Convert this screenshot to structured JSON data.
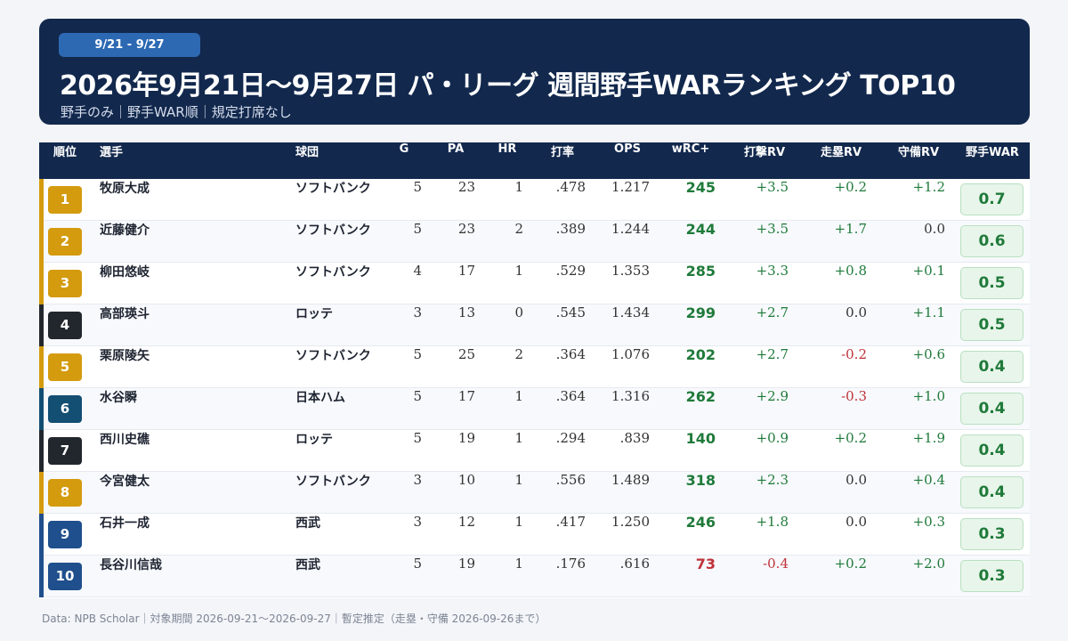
{
  "header": {
    "date_range": "9/21 - 9/27",
    "title": "2026年9月21日〜9月27日 パ・リーグ 週間野手WARランキング TOP10",
    "subtitle": "野手のみ｜野手WAR順｜規定打席なし"
  },
  "columns": [
    "順位",
    "選手",
    "球団",
    "G",
    "PA",
    "HR",
    "打率",
    "OPS",
    "wRC+",
    "打撃RV",
    "走塁RV",
    "守備RV",
    "野手WAR"
  ],
  "colors": {
    "header_bg": "#12284d",
    "softbank": "#d49b0f",
    "lotte": "#22262d",
    "nipponham": "#134e73",
    "seibu": "#1f4f8c",
    "positive": "#1f7a3a",
    "negative": "#c0313a",
    "neutral": "#333333"
  },
  "rows": [
    {
      "rank": "1",
      "name": "牧原大成",
      "team": "ソフトバンク",
      "team_key": "softbank",
      "g": "5",
      "pa": "23",
      "hr": "1",
      "avg": ".478",
      "ops": "1.217",
      "wrc": "245",
      "bat_rv": "+3.5",
      "run_rv": "+0.2",
      "def_rv": "+1.2",
      "war": "0.7"
    },
    {
      "rank": "2",
      "name": "近藤健介",
      "team": "ソフトバンク",
      "team_key": "softbank",
      "g": "5",
      "pa": "23",
      "hr": "2",
      "avg": ".389",
      "ops": "1.244",
      "wrc": "244",
      "bat_rv": "+3.5",
      "run_rv": "+1.7",
      "def_rv": "0.0",
      "war": "0.6"
    },
    {
      "rank": "3",
      "name": "柳田悠岐",
      "team": "ソフトバンク",
      "team_key": "softbank",
      "g": "4",
      "pa": "17",
      "hr": "1",
      "avg": ".529",
      "ops": "1.353",
      "wrc": "285",
      "bat_rv": "+3.3",
      "run_rv": "+0.8",
      "def_rv": "+0.1",
      "war": "0.5"
    },
    {
      "rank": "4",
      "name": "高部瑛斗",
      "team": "ロッテ",
      "team_key": "lotte",
      "g": "3",
      "pa": "13",
      "hr": "0",
      "avg": ".545",
      "ops": "1.434",
      "wrc": "299",
      "bat_rv": "+2.7",
      "run_rv": "0.0",
      "def_rv": "+1.1",
      "war": "0.5"
    },
    {
      "rank": "5",
      "name": "栗原陵矢",
      "team": "ソフトバンク",
      "team_key": "softbank",
      "g": "5",
      "pa": "25",
      "hr": "2",
      "avg": ".364",
      "ops": "1.076",
      "wrc": "202",
      "bat_rv": "+2.7",
      "run_rv": "-0.2",
      "def_rv": "+0.6",
      "war": "0.4"
    },
    {
      "rank": "6",
      "name": "水谷瞬",
      "team": "日本ハム",
      "team_key": "nipponham",
      "g": "5",
      "pa": "17",
      "hr": "1",
      "avg": ".364",
      "ops": "1.316",
      "wrc": "262",
      "bat_rv": "+2.9",
      "run_rv": "-0.3",
      "def_rv": "+1.0",
      "war": "0.4"
    },
    {
      "rank": "7",
      "name": "西川史礁",
      "team": "ロッテ",
      "team_key": "lotte",
      "g": "5",
      "pa": "19",
      "hr": "1",
      "avg": ".294",
      "ops": ".839",
      "wrc": "140",
      "bat_rv": "+0.9",
      "run_rv": "+0.2",
      "def_rv": "+1.9",
      "war": "0.4"
    },
    {
      "rank": "8",
      "name": "今宮健太",
      "team": "ソフトバンク",
      "team_key": "softbank",
      "g": "3",
      "pa": "10",
      "hr": "1",
      "avg": ".556",
      "ops": "1.489",
      "wrc": "318",
      "bat_rv": "+2.3",
      "run_rv": "0.0",
      "def_rv": "+0.4",
      "war": "0.4"
    },
    {
      "rank": "9",
      "name": "石井一成",
      "team": "西武",
      "team_key": "seibu",
      "g": "3",
      "pa": "12",
      "hr": "1",
      "avg": ".417",
      "ops": "1.250",
      "wrc": "246",
      "bat_rv": "+1.8",
      "run_rv": "0.0",
      "def_rv": "+0.3",
      "war": "0.3"
    },
    {
      "rank": "10",
      "name": "長谷川信哉",
      "team": "西武",
      "team_key": "seibu",
      "g": "5",
      "pa": "19",
      "hr": "1",
      "avg": ".176",
      "ops": ".616",
      "wrc": "73",
      "bat_rv": "-0.4",
      "run_rv": "+0.2",
      "def_rv": "+2.0",
      "war": "0.3"
    }
  ],
  "footer": "Data: NPB Scholar｜対象期間 2026-09-21〜2026-09-27｜暫定推定（走塁・守備 2026-09-26まで）"
}
